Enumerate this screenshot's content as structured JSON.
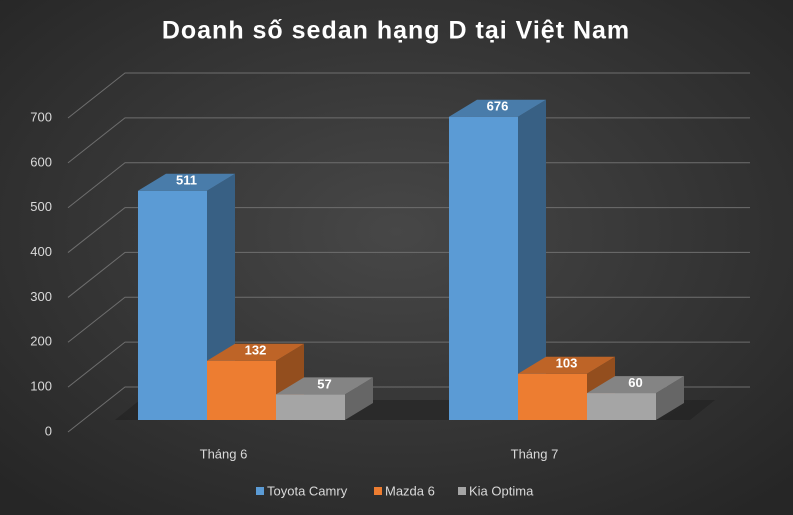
{
  "chart_data": {
    "type": "bar3d",
    "title": "Doanh số sedan hạng D tại Việt Nam",
    "categories": [
      "Tháng 6",
      "Tháng 7"
    ],
    "series": [
      {
        "name": "Toyota Camry",
        "color": "#5b9bd5",
        "values": [
          511,
          676
        ]
      },
      {
        "name": "Mazda 6",
        "color": "#ed7d31",
        "values": [
          132,
          103
        ]
      },
      {
        "name": "Kia Optima",
        "color": "#a5a5a5",
        "values": [
          57,
          60
        ]
      }
    ],
    "ylim": [
      0,
      700
    ],
    "yticks": [
      0,
      100,
      200,
      300,
      400,
      500,
      600,
      700
    ],
    "grid": true
  }
}
